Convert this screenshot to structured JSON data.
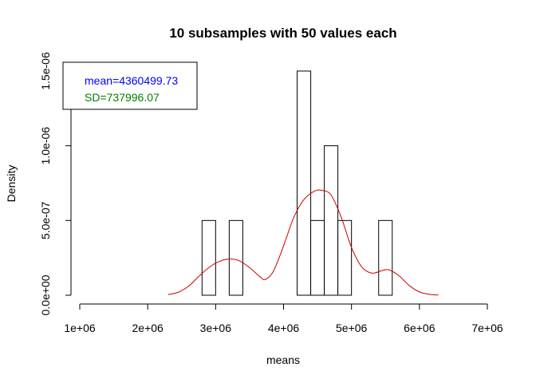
{
  "chart_data": {
    "type": "histogram",
    "title": "10 subsamples with 50 values each",
    "xlabel": "means",
    "ylabel": "Density",
    "xlim": [
      1000000,
      7000000
    ],
    "ylim": [
      0,
      1.5e-06
    ],
    "x_ticks": [
      1000000,
      2000000,
      3000000,
      4000000,
      5000000,
      6000000,
      7000000
    ],
    "x_tick_labels": [
      "1e+06",
      "2e+06",
      "3e+06",
      "4e+06",
      "5e+06",
      "6e+06",
      "7e+06"
    ],
    "y_ticks": [
      0,
      5e-07,
      1e-06,
      1.5e-06
    ],
    "y_tick_labels": [
      "0.0e+00",
      "5.0e-07",
      "1.0e-06",
      "1.5e-06"
    ],
    "bins": [
      {
        "start": 2800000,
        "end": 3000000,
        "density": 5e-07
      },
      {
        "start": 3000000,
        "end": 3200000,
        "density": 0
      },
      {
        "start": 3200000,
        "end": 3400000,
        "density": 5e-07
      },
      {
        "start": 3400000,
        "end": 3600000,
        "density": 0
      },
      {
        "start": 3600000,
        "end": 3800000,
        "density": 0
      },
      {
        "start": 3800000,
        "end": 4000000,
        "density": 0
      },
      {
        "start": 4000000,
        "end": 4200000,
        "density": 0
      },
      {
        "start": 4200000,
        "end": 4400000,
        "density": 1.5e-06
      },
      {
        "start": 4400000,
        "end": 4600000,
        "density": 5e-07
      },
      {
        "start": 4600000,
        "end": 4800000,
        "density": 1e-06
      },
      {
        "start": 4800000,
        "end": 5000000,
        "density": 5e-07
      },
      {
        "start": 5000000,
        "end": 5200000,
        "density": 0
      },
      {
        "start": 5200000,
        "end": 5400000,
        "density": 0
      },
      {
        "start": 5400000,
        "end": 5600000,
        "density": 5e-07
      }
    ],
    "density_curve": {
      "color": "#cc0000",
      "x": [
        2300000,
        2450000,
        2600000,
        2750000,
        2900000,
        3050000,
        3200000,
        3350000,
        3500000,
        3650000,
        3730000,
        3850000,
        4000000,
        4150000,
        4300000,
        4450000,
        4560000,
        4700000,
        4850000,
        5000000,
        5150000,
        5300000,
        5450000,
        5550000,
        5700000,
        5850000,
        6000000,
        6150000,
        6280000
      ],
      "y": [
        4e-09,
        2e-08,
        6e-08,
        1.25e-07,
        1.85e-07,
        2.25e-07,
        2.42e-07,
        2.3e-07,
        1.85e-07,
        1.25e-07,
        1.05e-07,
        1.6e-07,
        3.3e-07,
        5.2e-07,
        6.4e-07,
        6.95e-07,
        7.02e-07,
        6.7e-07,
        5.2e-07,
        3.2e-07,
        1.9e-07,
        1.48e-07,
        1.65e-07,
        1.7e-07,
        1.3e-07,
        6.5e-08,
        2.2e-08,
        6e-09,
        1e-09
      ]
    },
    "legend": {
      "position": "top-left",
      "entries": [
        {
          "text": "mean=4360499.73",
          "color": "#0000ff"
        },
        {
          "text": "SD=737996.07",
          "color": "#008000"
        }
      ]
    }
  }
}
